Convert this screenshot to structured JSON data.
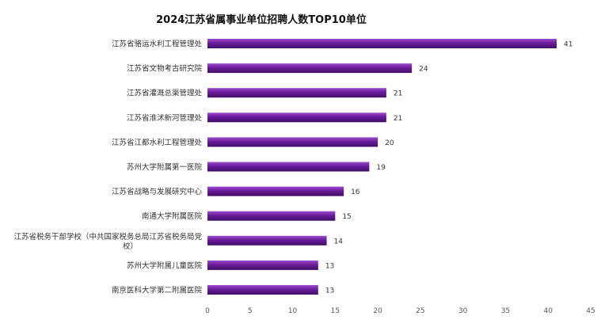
{
  "chart_data": {
    "type": "bar",
    "orientation": "horizontal",
    "title": "2024江苏省属事业单位招聘人数TOP10单位",
    "xlabel": "",
    "ylabel": "",
    "xlim": [
      0,
      45
    ],
    "xticks": [
      0,
      5,
      10,
      15,
      20,
      25,
      30,
      35,
      40,
      45
    ],
    "grid": false,
    "categories": [
      "江苏省骆运水利工程管理处",
      "江苏省文物考古研究院",
      "江苏省灌溉总渠管理处",
      "江苏省淮沭新河管理处",
      "江苏省江都水利工程管理处",
      "苏州大学附属第一医院",
      "江苏省战略与发展研究中心",
      "南通大学附属医院",
      "江苏省税务干部学校（中共国家税务总局江苏省税务局党校）",
      "苏州大学附属儿童医院",
      "南京医科大学第二附属医院"
    ],
    "values": [
      41,
      24,
      21,
      21,
      20,
      19,
      16,
      15,
      14,
      13,
      13
    ],
    "colors": {
      "bar": "#6a1b9a",
      "bar_light": "#9c4dcc",
      "bar_dark": "#3f0f66"
    }
  }
}
